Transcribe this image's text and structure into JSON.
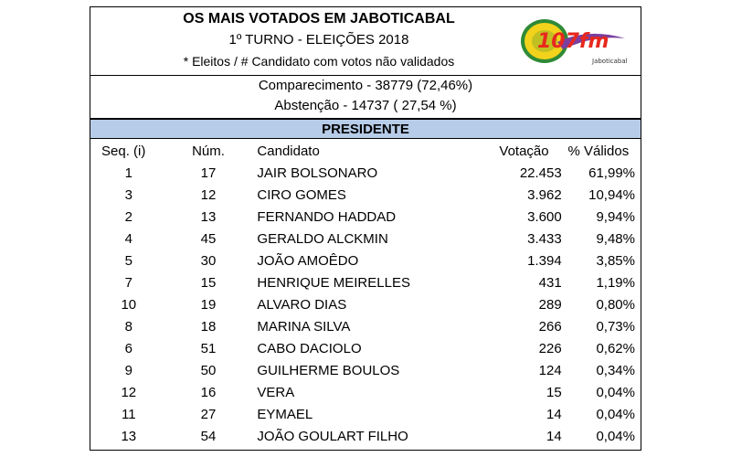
{
  "header": {
    "title": "OS MAIS VOTADOS EM JABOTICABAL",
    "subtitle": "1º TURNO - ELEIÇÕES 2018",
    "note": "* Eleitos  / # Candidato com votos não validados"
  },
  "logo": {
    "text": "107fm",
    "caption": "Jaboticabal",
    "colors": {
      "ring": "#f2d21b",
      "ring_outer": "#2f8a36",
      "text": "#e8281e",
      "wing": "#7a3fa0"
    }
  },
  "stats": {
    "attendance": "Comparecimento - 38779 (72,46%)",
    "abstention": "Abstenção - 14737 ( 27,54 %)"
  },
  "section": {
    "title": "PRESIDENTE",
    "color": "#b7cce8"
  },
  "table": {
    "headers": {
      "seq": "Seq.   (i)",
      "num": "Núm.",
      "name": "Candidato",
      "votes": "Votação",
      "pct": "% Válidos"
    },
    "rows": [
      {
        "seq": "1",
        "num": "17",
        "name": "JAIR BOLSONARO",
        "votes": "22.453",
        "pct": "61,99%"
      },
      {
        "seq": "3",
        "num": "12",
        "name": "CIRO GOMES",
        "votes": "3.962",
        "pct": "10,94%"
      },
      {
        "seq": "2",
        "num": "13",
        "name": "FERNANDO HADDAD",
        "votes": "3.600",
        "pct": "9,94%"
      },
      {
        "seq": "4",
        "num": "45",
        "name": "GERALDO ALCKMIN",
        "votes": "3.433",
        "pct": "9,48%"
      },
      {
        "seq": "5",
        "num": "30",
        "name": "JOÃO AMOÊDO",
        "votes": "1.394",
        "pct": "3,85%"
      },
      {
        "seq": "7",
        "num": "15",
        "name": "HENRIQUE MEIRELLES",
        "votes": "431",
        "pct": "1,19%"
      },
      {
        "seq": "10",
        "num": "19",
        "name": "ALVARO DIAS",
        "votes": "289",
        "pct": "0,80%"
      },
      {
        "seq": "8",
        "num": "18",
        "name": "MARINA SILVA",
        "votes": "266",
        "pct": "0,73%"
      },
      {
        "seq": "6",
        "num": "51",
        "name": "CABO DACIOLO",
        "votes": "226",
        "pct": "0,62%"
      },
      {
        "seq": "9",
        "num": "50",
        "name": "GUILHERME BOULOS",
        "votes": "124",
        "pct": "0,34%"
      },
      {
        "seq": "12",
        "num": "16",
        "name": "VERA",
        "votes": "15",
        "pct": "0,04%"
      },
      {
        "seq": "11",
        "num": "27",
        "name": "EYMAEL",
        "votes": "14",
        "pct": "0,04%"
      },
      {
        "seq": "13",
        "num": "54",
        "name": "JOÃO GOULART FILHO",
        "votes": "14",
        "pct": "0,04%"
      }
    ]
  }
}
